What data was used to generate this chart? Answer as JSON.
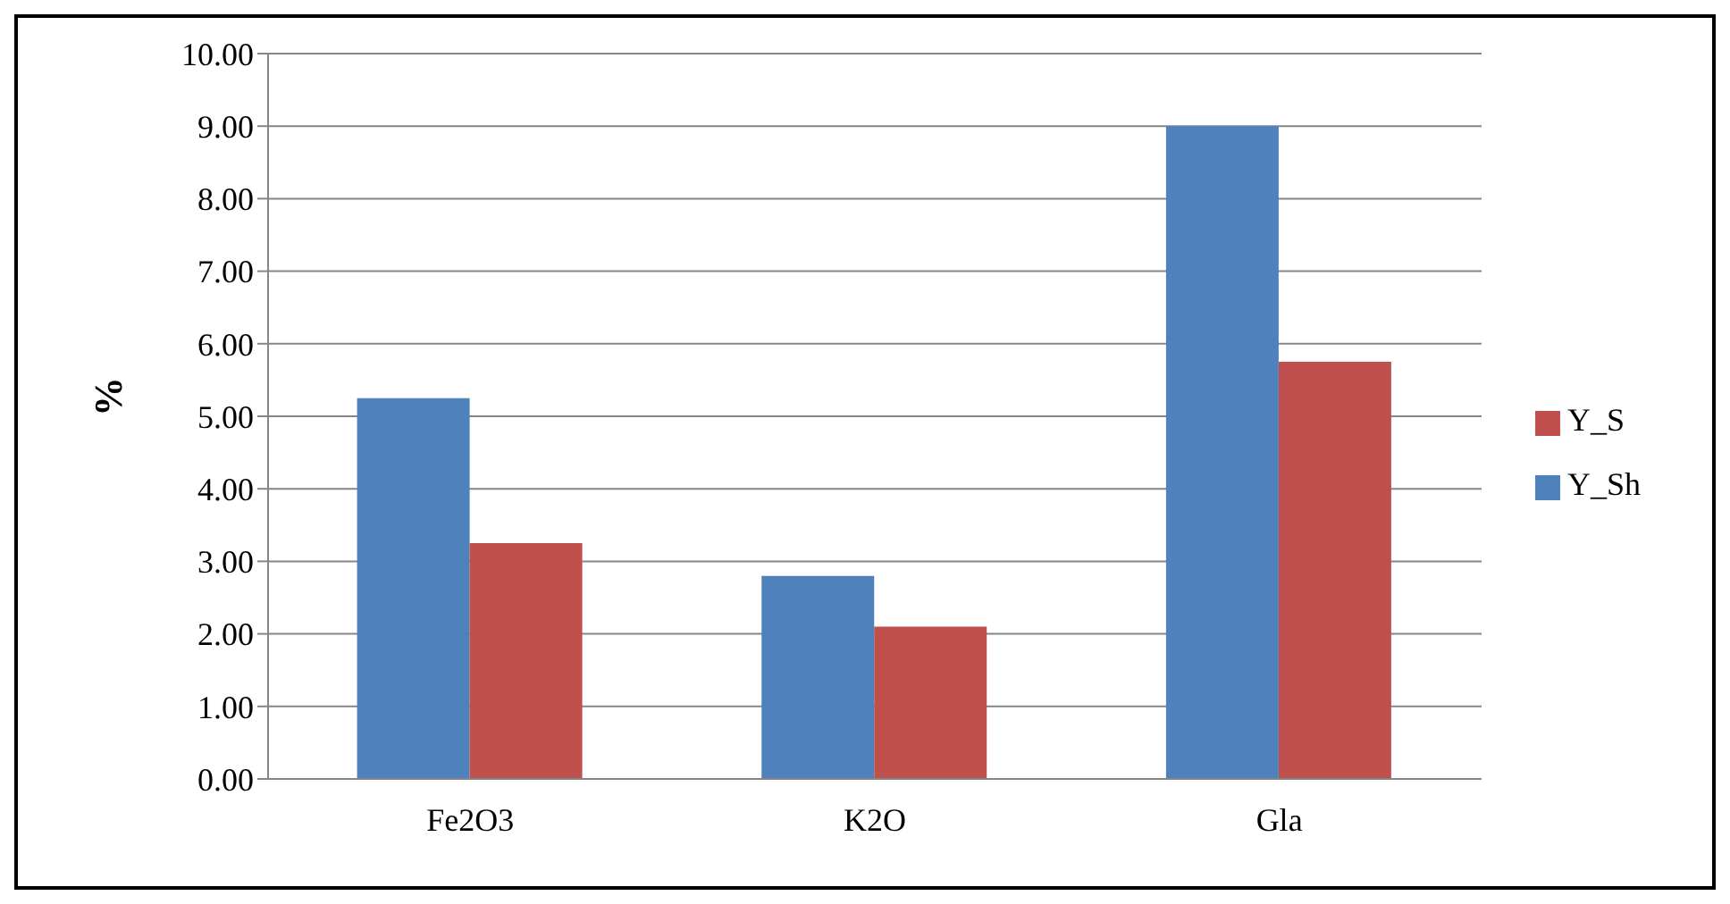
{
  "chart_data": {
    "type": "bar",
    "ylabel": "%",
    "categories": [
      "Fe2O3",
      "K2O",
      "Gla"
    ],
    "series": [
      {
        "name": "Y_Sh",
        "color": "#4f81bd",
        "values": [
          5.25,
          2.8,
          9.0
        ]
      },
      {
        "name": "Y_S",
        "color": "#c0504d",
        "values": [
          3.25,
          2.1,
          5.75
        ]
      }
    ],
    "ylim": [
      0,
      10
    ],
    "yticks": [
      {
        "value": 0,
        "label": "0.00"
      },
      {
        "value": 1,
        "label": "1.00"
      },
      {
        "value": 2,
        "label": "2.00"
      },
      {
        "value": 3,
        "label": "3.00"
      },
      {
        "value": 4,
        "label": "4.00"
      },
      {
        "value": 5,
        "label": "5.00"
      },
      {
        "value": 6,
        "label": "6.00"
      },
      {
        "value": 7,
        "label": "7.00"
      },
      {
        "value": 8,
        "label": "8.00"
      },
      {
        "value": 9,
        "label": "9.00"
      },
      {
        "value": 10,
        "label": "10.00"
      }
    ],
    "grid": "y",
    "legend": "right"
  }
}
